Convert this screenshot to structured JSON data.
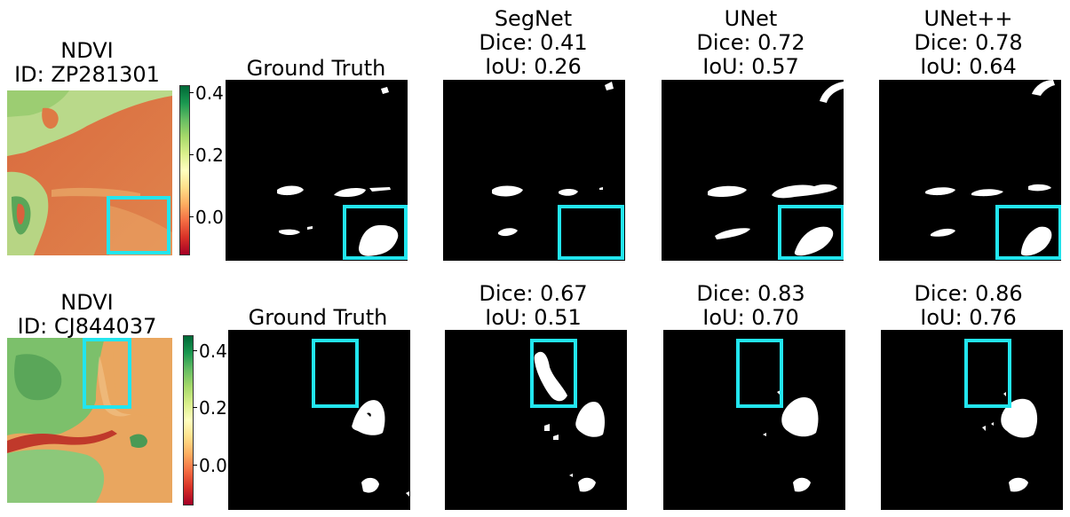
{
  "highlight_color": "#22e5ee",
  "colormap": [
    "#a50026",
    "#d73027",
    "#f46d43",
    "#fdae61",
    "#fee08b",
    "#ffffbf",
    "#d9ef8b",
    "#a6d96a",
    "#66bd63",
    "#1a9850",
    "#006837"
  ],
  "rows": [
    {
      "ndvi": {
        "title": "NDVI",
        "id": "ID: ZP281301",
        "colorbar_ticks": [
          "0.4",
          "0.2",
          "0.0"
        ]
      },
      "ground_truth": {
        "title": "Ground Truth"
      },
      "models": [
        {
          "name": "SegNet",
          "dice": "Dice: 0.41",
          "iou": "IoU: 0.26"
        },
        {
          "name": "UNet",
          "dice": "Dice: 0.72",
          "iou": "IoU: 0.57"
        },
        {
          "name": "UNet++",
          "dice": "Dice: 0.78",
          "iou": "IoU: 0.64"
        }
      ]
    },
    {
      "ndvi": {
        "title": "NDVI",
        "id": "ID: CJ844037",
        "colorbar_ticks": [
          "0.4",
          "0.2",
          "0.0"
        ]
      },
      "ground_truth": {
        "title": "Ground Truth"
      },
      "models": [
        {
          "name": "",
          "dice": "Dice: 0.67",
          "iou": "IoU: 0.51"
        },
        {
          "name": "",
          "dice": "Dice: 0.83",
          "iou": "IoU: 0.70"
        },
        {
          "name": "",
          "dice": "Dice: 0.86",
          "iou": "IoU: 0.76"
        }
      ]
    }
  ]
}
